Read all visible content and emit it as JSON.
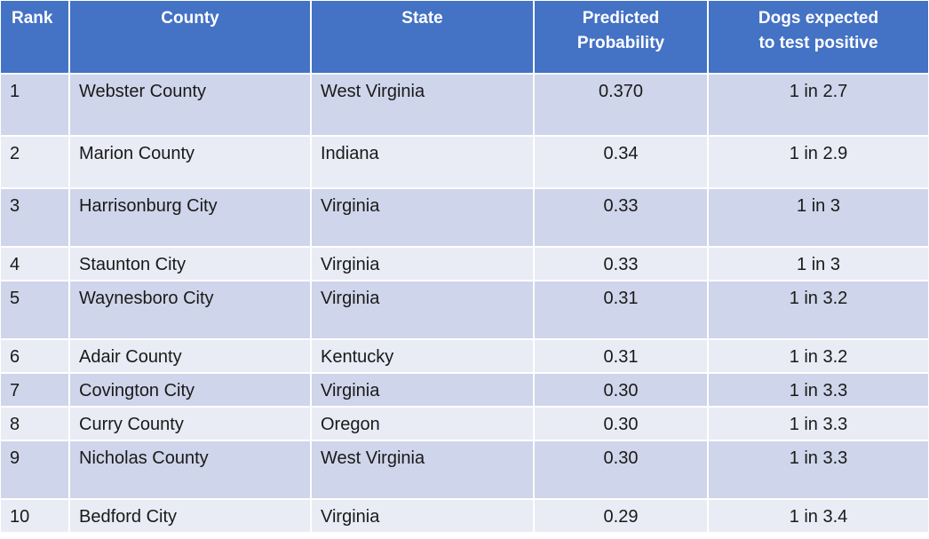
{
  "table": {
    "headers": {
      "rank": "Rank",
      "county": "County",
      "state": "State",
      "probability_line1": "Predicted",
      "probability_line2": "Probability",
      "dogs_line1": "Dogs expected",
      "dogs_line2": "to test positive"
    },
    "rows": [
      {
        "rank": "1",
        "county": "Webster County",
        "state": "West Virginia",
        "probability": "0.370",
        "dogs": "1 in 2.7"
      },
      {
        "rank": "2",
        "county": "Marion County",
        "state": "Indiana",
        "probability": "0.34",
        "dogs": "1 in 2.9"
      },
      {
        "rank": "3",
        "county": "Harrisonburg City",
        "state": "Virginia",
        "probability": "0.33",
        "dogs": "1 in 3"
      },
      {
        "rank": "4",
        "county": "Staunton City",
        "state": "Virginia",
        "probability": "0.33",
        "dogs": "1 in 3"
      },
      {
        "rank": "5",
        "county": "Waynesboro City",
        "state": "Virginia",
        "probability": "0.31",
        "dogs": "1 in 3.2"
      },
      {
        "rank": "6",
        "county": "Adair County",
        "state": "Kentucky",
        "probability": "0.31",
        "dogs": "1 in 3.2"
      },
      {
        "rank": "7",
        "county": "Covington City",
        "state": "Virginia",
        "probability": "0.30",
        "dogs": "1 in 3.3"
      },
      {
        "rank": "8",
        "county": "Curry County",
        "state": "Oregon",
        "probability": "0.30",
        "dogs": "1 in 3.3"
      },
      {
        "rank": "9",
        "county": "Nicholas County",
        "state": "West Virginia",
        "probability": "0.30",
        "dogs": "1 in 3.3"
      },
      {
        "rank": "10",
        "county": "Bedford City",
        "state": "Virginia",
        "probability": "0.29",
        "dogs": "1 in 3.4"
      }
    ]
  },
  "colors": {
    "header_bg": "#4472c4",
    "row_dark": "#cfd5ea",
    "row_light": "#e9ebf5"
  }
}
